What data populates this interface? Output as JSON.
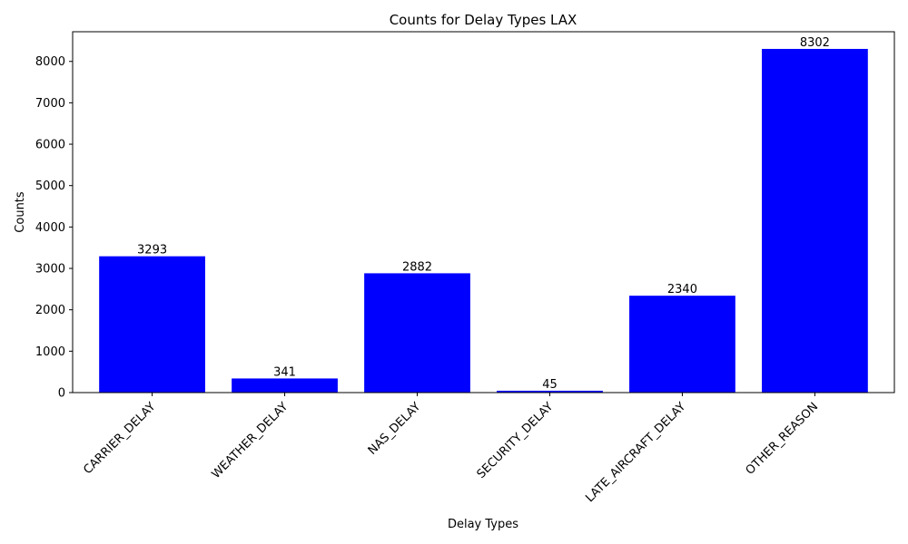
{
  "chart_data": {
    "type": "bar",
    "title": "Counts for Delay Types LAX",
    "xlabel": "Delay Types",
    "ylabel": "Counts",
    "categories": [
      "CARRIER_DELAY",
      "WEATHER_DELAY",
      "NAS_DELAY",
      "SECURITY_DELAY",
      "LATE_AIRCRAFT_DELAY",
      "OTHER_REASON"
    ],
    "values": [
      3293,
      341,
      2882,
      45,
      2340,
      8302
    ],
    "data_labels": [
      "3293",
      "341",
      "2882",
      "45",
      "2340",
      "8302"
    ],
    "ylim": [
      0,
      8717
    ],
    "yticks": [
      0,
      1000,
      2000,
      3000,
      4000,
      5000,
      6000,
      7000,
      8000
    ],
    "ytick_labels": [
      "0",
      "1000",
      "2000",
      "3000",
      "4000",
      "5000",
      "6000",
      "7000",
      "8000"
    ],
    "bar_color": "#0000ff",
    "grid": false,
    "legend": "none"
  }
}
